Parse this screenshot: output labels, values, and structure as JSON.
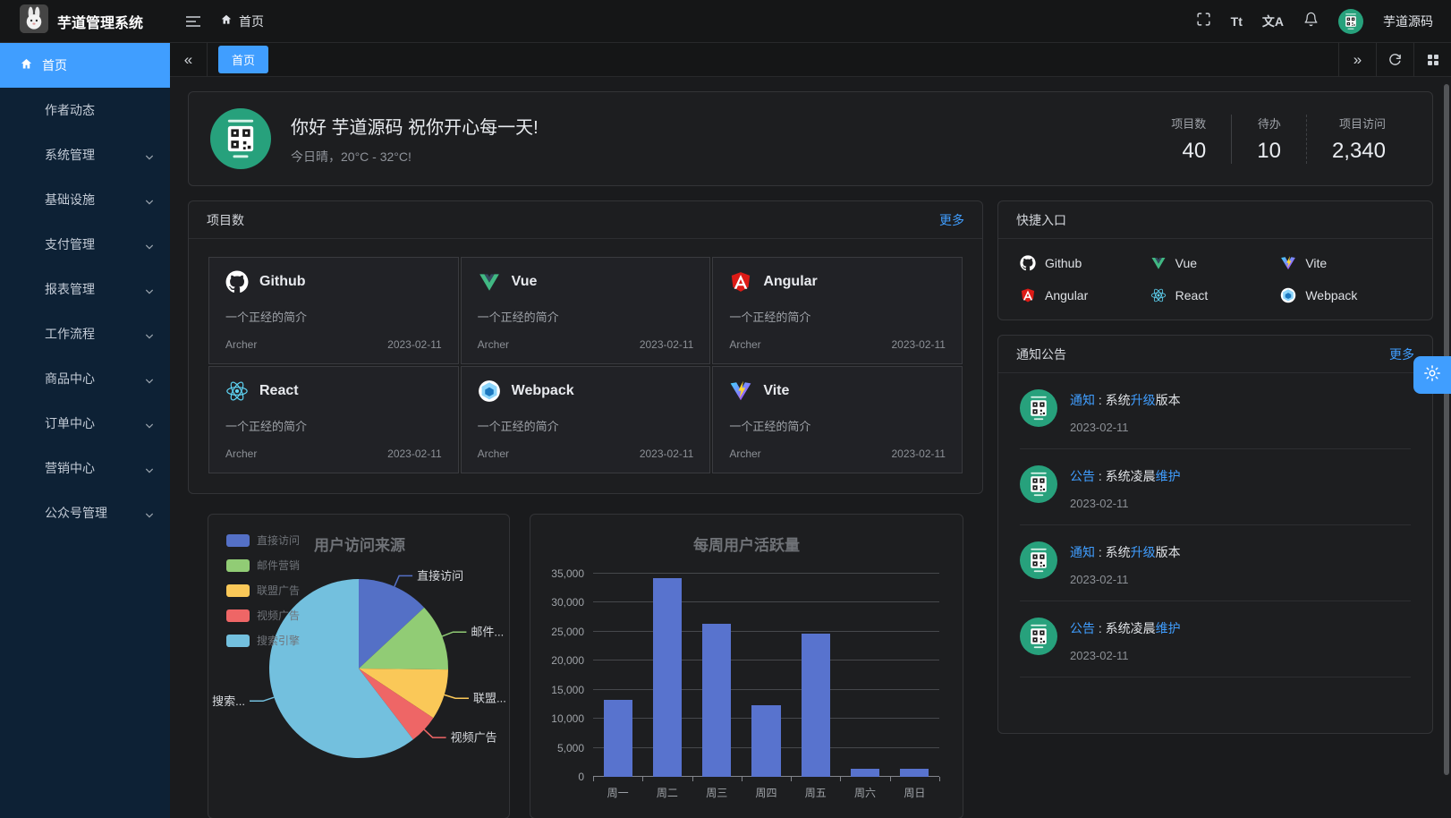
{
  "app": {
    "title": "芋道管理系统",
    "user": "芋道源码"
  },
  "header": {
    "breadcrumb_home": "首页",
    "font_size_glyph": "Tt",
    "locale_glyph": "文A"
  },
  "sidebar": {
    "items": [
      {
        "label": "首页",
        "active": true,
        "home_icon": true,
        "expandable": false
      },
      {
        "label": "作者动态",
        "active": false,
        "home_icon": false,
        "expandable": false
      },
      {
        "label": "系统管理",
        "active": false,
        "home_icon": false,
        "expandable": true
      },
      {
        "label": "基础设施",
        "active": false,
        "home_icon": false,
        "expandable": true
      },
      {
        "label": "支付管理",
        "active": false,
        "home_icon": false,
        "expandable": true
      },
      {
        "label": "报表管理",
        "active": false,
        "home_icon": false,
        "expandable": true
      },
      {
        "label": "工作流程",
        "active": false,
        "home_icon": false,
        "expandable": true
      },
      {
        "label": "商品中心",
        "active": false,
        "home_icon": false,
        "expandable": true
      },
      {
        "label": "订单中心",
        "active": false,
        "home_icon": false,
        "expandable": true
      },
      {
        "label": "营销中心",
        "active": false,
        "home_icon": false,
        "expandable": true
      },
      {
        "label": "公众号管理",
        "active": false,
        "home_icon": false,
        "expandable": true
      }
    ]
  },
  "tabs": {
    "active": "首页"
  },
  "welcome": {
    "greeting": "你好 芋道源码 祝你开心每一天!",
    "subtitle": "今日晴，20°C - 32°C!",
    "stats": [
      {
        "label": "项目数",
        "value": "40"
      },
      {
        "label": "待办",
        "value": "10"
      },
      {
        "label": "项目访问",
        "value": "2,340"
      }
    ]
  },
  "projects": {
    "title": "项目数",
    "more": "更多",
    "items": [
      {
        "name": "Github",
        "icon": "github",
        "desc": "一个正经的简介",
        "author": "Archer",
        "date": "2023-02-11"
      },
      {
        "name": "Vue",
        "icon": "vue",
        "desc": "一个正经的简介",
        "author": "Archer",
        "date": "2023-02-11"
      },
      {
        "name": "Angular",
        "icon": "angular",
        "desc": "一个正经的简介",
        "author": "Archer",
        "date": "2023-02-11"
      },
      {
        "name": "React",
        "icon": "react",
        "desc": "一个正经的简介",
        "author": "Archer",
        "date": "2023-02-11"
      },
      {
        "name": "Webpack",
        "icon": "webpack",
        "desc": "一个正经的简介",
        "author": "Archer",
        "date": "2023-02-11"
      },
      {
        "name": "Vite",
        "icon": "vite",
        "desc": "一个正经的简介",
        "author": "Archer",
        "date": "2023-02-11"
      }
    ]
  },
  "quick_links": {
    "title": "快捷入口",
    "items": [
      {
        "name": "Github",
        "icon": "github"
      },
      {
        "name": "Vue",
        "icon": "vue"
      },
      {
        "name": "Vite",
        "icon": "vite"
      },
      {
        "name": "Angular",
        "icon": "angular"
      },
      {
        "name": "React",
        "icon": "react"
      },
      {
        "name": "Webpack",
        "icon": "webpack"
      }
    ]
  },
  "notices": {
    "title": "通知公告",
    "more": "更多",
    "items": [
      {
        "tag": "通知",
        "sep": " : ",
        "pre": "系统",
        "highlight": "升级",
        "post": "版本",
        "date": "2023-02-11"
      },
      {
        "tag": "公告",
        "sep": " : ",
        "pre": "系统凌晨",
        "highlight": "维护",
        "post": "",
        "date": "2023-02-11"
      },
      {
        "tag": "通知",
        "sep": " : ",
        "pre": "系统",
        "highlight": "升级",
        "post": "版本",
        "date": "2023-02-11"
      },
      {
        "tag": "公告",
        "sep": " : ",
        "pre": "系统凌晨",
        "highlight": "维护",
        "post": "",
        "date": "2023-02-11"
      }
    ]
  },
  "chart_data": [
    {
      "type": "pie",
      "title": "用户访问来源",
      "legend_position": "top-left",
      "series": [
        {
          "name": "直接访问",
          "value": 335,
          "color": "#5470c6",
          "callout": "直接访问"
        },
        {
          "name": "邮件营销",
          "value": 310,
          "color": "#91cc75",
          "callout": "邮件..."
        },
        {
          "name": "联盟广告",
          "value": 234,
          "color": "#fac858",
          "callout": "联盟..."
        },
        {
          "name": "视频广告",
          "value": 135,
          "color": "#ee6666",
          "callout": "视频广告"
        },
        {
          "name": "搜索引擎",
          "value": 1548,
          "color": "#73c0de",
          "callout": "搜索..."
        }
      ]
    },
    {
      "type": "bar",
      "title": "每周用户活跃量",
      "categories": [
        "周一",
        "周二",
        "周三",
        "周四",
        "周五",
        "周六",
        "周日"
      ],
      "values": [
        13253,
        34235,
        26321,
        12340,
        24643,
        1322,
        1324
      ],
      "ylim": [
        0,
        35000
      ],
      "ytick_step": 5000,
      "bar_color": "#5873ce",
      "grid": true,
      "legend_position": "none"
    }
  ],
  "colors": {
    "accent": "#409eff",
    "sidebar_bg": "#0d2135",
    "avatar_green": "#27a17c"
  }
}
